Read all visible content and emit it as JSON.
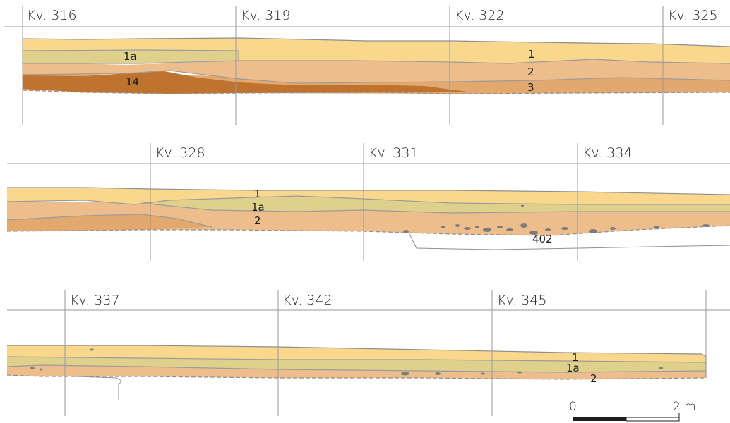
{
  "colors": {
    "layer_1": "#f9d88d",
    "layer_1a": "#dfd18b",
    "layer_2": "#eebd8c",
    "layer_3": "#e3a86e",
    "layer_14": "#bf732e",
    "stones": "#7d7d7d",
    "lines": "#9a9a9a"
  },
  "profiles": [
    {
      "squares": [
        "Kv. 316",
        "Kv. 319",
        "Kv. 322",
        "Kv. 325"
      ],
      "layers": [
        "1a",
        "14",
        "1",
        "2",
        "3"
      ]
    },
    {
      "squares": [
        "Kv. 328",
        "Kv. 331",
        "Kv. 334"
      ],
      "layers": [
        "1",
        "1a",
        "2",
        "402"
      ]
    },
    {
      "squares": [
        "Kv. 337",
        "Kv. 342",
        "Kv. 345"
      ],
      "layers": [
        "1",
        "1a",
        "2"
      ]
    }
  ],
  "scale_bar": {
    "start_label": "0",
    "end_label": "2 m"
  }
}
